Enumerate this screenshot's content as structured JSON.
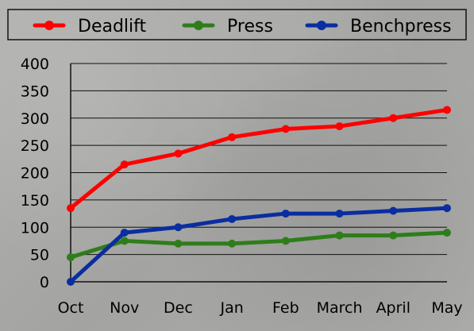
{
  "chart_data": {
    "type": "line",
    "categories": [
      "Oct",
      "Nov",
      "Dec",
      "Jan",
      "Feb",
      "March",
      "April",
      "May"
    ],
    "series": [
      {
        "name": "Deadlift",
        "color": "#ff0000",
        "values": [
          135,
          215,
          235,
          265,
          280,
          285,
          300,
          315
        ]
      },
      {
        "name": "Press",
        "color": "#2e7d1a",
        "values": [
          45,
          75,
          70,
          70,
          75,
          85,
          85,
          90
        ]
      },
      {
        "name": "Benchpress",
        "color": "#0a2da0",
        "values": [
          0,
          90,
          100,
          115,
          125,
          125,
          130,
          135
        ]
      }
    ],
    "y_ticks": [
      "0",
      "50",
      "100",
      "150",
      "200",
      "250",
      "300",
      "350",
      "400"
    ],
    "ylim": [
      0,
      400
    ],
    "grid": true,
    "legend_position": "top"
  }
}
